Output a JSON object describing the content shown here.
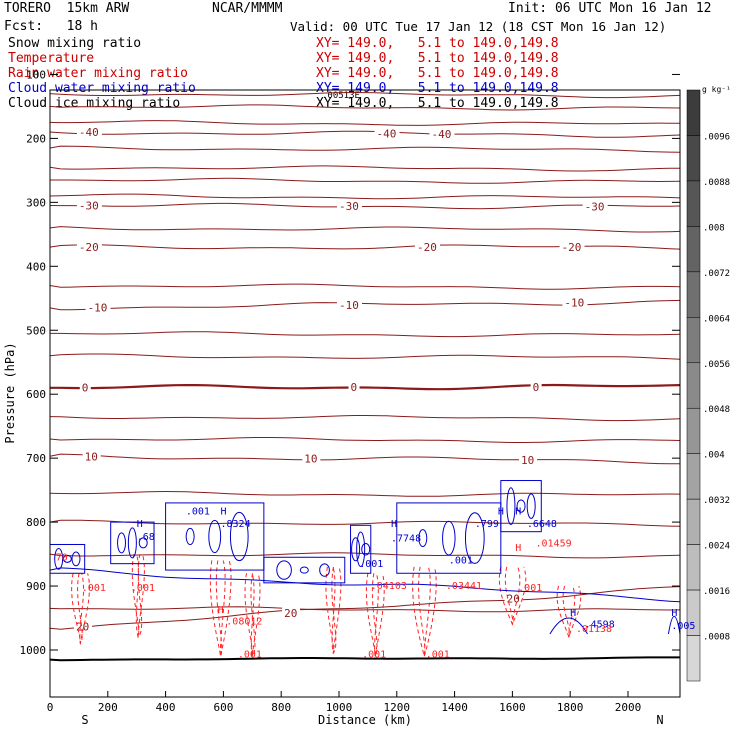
{
  "header": {
    "model": "TORERO  15km ARW",
    "org": "NCAR/MMMM",
    "init": "Init: 06 UTC Mon 16 Jan 12",
    "fcst": "Fcst:   18 h",
    "valid": "Valid: 00 UTC Tue 17 Jan 12 (18 CST Mon 16 Jan 12)"
  },
  "legend": [
    {
      "label": "Snow mixing ratio",
      "xy": "XY= 149.0,   5.1 to 149.0,149.8",
      "color": "#000000"
    },
    {
      "label": "Temperature",
      "xy": "XY= 149.0,   5.1 to 149.0,149.8",
      "color": "#cc0000"
    },
    {
      "label": "Rain water mixing ratio",
      "xy": "XY= 149.0,   5.1 to 149.0,149.8",
      "color": "#cc0000"
    },
    {
      "label": "Cloud water mixing ratio",
      "xy": "XY= 149.0,   5.1 to 149.0,149.8",
      "color": "#0000cc"
    },
    {
      "label": "Cloud ice mixing ratio",
      "xy": "XY= 149.0,   5.1 to 149.0,149.8",
      "color": "#000000"
    }
  ],
  "chart_data": {
    "type": "contour",
    "xlabel": "Distance (km)",
    "ylabel": "Pressure (hPa)",
    "xlim": [
      0,
      2180
    ],
    "ylim": [
      100,
      1030
    ],
    "x_ticks": [
      "0",
      "200",
      "400",
      "600",
      "800",
      "1000",
      "1200",
      "1400",
      "1600",
      "1800",
      "2000"
    ],
    "x_tick_values": [
      0,
      200,
      400,
      600,
      800,
      1000,
      1200,
      1400,
      1600,
      1800,
      2000
    ],
    "y_ticks": [
      "100",
      "200",
      "300",
      "400",
      "500",
      "600",
      "700",
      "800",
      "900",
      "1000"
    ],
    "y_tick_values": [
      100,
      200,
      300,
      400,
      500,
      600,
      700,
      800,
      900,
      1000
    ],
    "left_end_label": "S",
    "right_end_label": "N",
    "colorbar": {
      "unit": "g kg⁻¹",
      "ticks": [
        ".0096",
        ".0088",
        ".008",
        ".0072",
        ".0064",
        ".0056",
        ".0048",
        ".004",
        ".0032",
        ".0024",
        ".0016",
        ".0008"
      ],
      "tick_values": [
        0.0096,
        0.0088,
        0.008,
        0.0072,
        0.0064,
        0.0056,
        0.0048,
        0.004,
        0.0032,
        0.0024,
        0.0016,
        0.0008
      ]
    },
    "annotations": [
      ".00513E"
    ],
    "temperature_contours": [
      {
        "temp": -40,
        "p_left": 190,
        "p_right": 195,
        "labels": [
          {
            "x": 100,
            "text": "-40"
          },
          {
            "x": 1130,
            "text": "-40"
          },
          {
            "x": 1320,
            "text": "-40"
          }
        ]
      },
      {
        "temp": -30,
        "p_left": 305,
        "p_right": 307,
        "labels": [
          {
            "x": 100,
            "text": "-30"
          },
          {
            "x": 1000,
            "text": "-30"
          },
          {
            "x": 1850,
            "text": "-30"
          }
        ]
      },
      {
        "temp": -20,
        "p_left": 370,
        "p_right": 370,
        "labels": [
          {
            "x": 100,
            "text": "-20"
          },
          {
            "x": 1270,
            "text": "-20"
          },
          {
            "x": 1770,
            "text": "-20"
          }
        ]
      },
      {
        "temp": -10,
        "p_left": 465,
        "p_right": 455,
        "labels": [
          {
            "x": 130,
            "text": "-10"
          },
          {
            "x": 1000,
            "text": "-10"
          },
          {
            "x": 1780,
            "text": "-10"
          }
        ]
      },
      {
        "temp": 0,
        "p_left": 590,
        "p_right": 588,
        "labels": [
          {
            "x": 110,
            "text": "0"
          },
          {
            "x": 1040,
            "text": "0"
          },
          {
            "x": 1670,
            "text": "0"
          }
        ]
      },
      {
        "temp": 10,
        "p_left": 697,
        "p_right": 705,
        "labels": [
          {
            "x": 120,
            "text": "10"
          },
          {
            "x": 880,
            "text": "10"
          },
          {
            "x": 1630,
            "text": "10"
          }
        ]
      },
      {
        "temp": 20,
        "p_left": 966,
        "p_right": 902,
        "labels": [
          {
            "x": 90,
            "text": "20"
          },
          {
            "x": 810,
            "text": "20"
          },
          {
            "x": 1580,
            "text": "20"
          }
        ]
      }
    ],
    "temperature_lines_plain": [
      130,
      150,
      175,
      215,
      245,
      265,
      290,
      340,
      430,
      505,
      540,
      635,
      670,
      755,
      800,
      850,
      935
    ],
    "cloud_water_labels": [
      {
        "x": 470,
        "p": 788,
        "text": ".001"
      },
      {
        "x": 590,
        "p": 788,
        "text": "H"
      },
      {
        "x": 590,
        "p": 808,
        "text": ".8324"
      },
      {
        "x": 300,
        "p": 808,
        "text": "H"
      },
      {
        "x": 300,
        "p": 828,
        "text": ".68"
      },
      {
        "x": 1180,
        "p": 808,
        "text": "H"
      },
      {
        "x": 1180,
        "p": 830,
        "text": ".7748"
      },
      {
        "x": 1550,
        "p": 788,
        "text": "H"
      },
      {
        "x": 1470,
        "p": 808,
        "text": ".799"
      },
      {
        "x": 1610,
        "p": 788,
        "text": "H"
      },
      {
        "x": 1650,
        "p": 808,
        "text": ".6648"
      },
      {
        "x": 1070,
        "p": 870,
        "text": ".001"
      },
      {
        "x": 1380,
        "p": 865,
        "text": ".001"
      },
      {
        "x": 1800,
        "p": 947,
        "text": "H"
      },
      {
        "x": 1850,
        "p": 965,
        "text": ".4598"
      },
      {
        "x": 2150,
        "p": 947,
        "text": "H"
      },
      {
        "x": 2150,
        "p": 967,
        "text": ".005"
      }
    ],
    "rain_water_labels": [
      {
        "x": 20,
        "p": 860,
        "text": "70"
      },
      {
        "x": 110,
        "p": 908,
        "text": ".001"
      },
      {
        "x": 280,
        "p": 908,
        "text": ".001"
      },
      {
        "x": 610,
        "p": 960,
        "text": ".08012"
      },
      {
        "x": 580,
        "p": 942,
        "text": "H"
      },
      {
        "x": 1110,
        "p": 905,
        "text": ".04103"
      },
      {
        "x": 1370,
        "p": 905,
        "text": ".03441"
      },
      {
        "x": 1610,
        "p": 845,
        "text": "H"
      },
      {
        "x": 1680,
        "p": 838,
        "text": ".01459"
      },
      {
        "x": 1620,
        "p": 908,
        "text": ".001"
      },
      {
        "x": 1820,
        "p": 972,
        "text": ".01138"
      },
      {
        "x": 650,
        "p": 1012,
        "text": ".001"
      },
      {
        "x": 1080,
        "p": 1012,
        "text": ".001"
      },
      {
        "x": 1300,
        "p": 1012,
        "text": ".001"
      }
    ]
  }
}
